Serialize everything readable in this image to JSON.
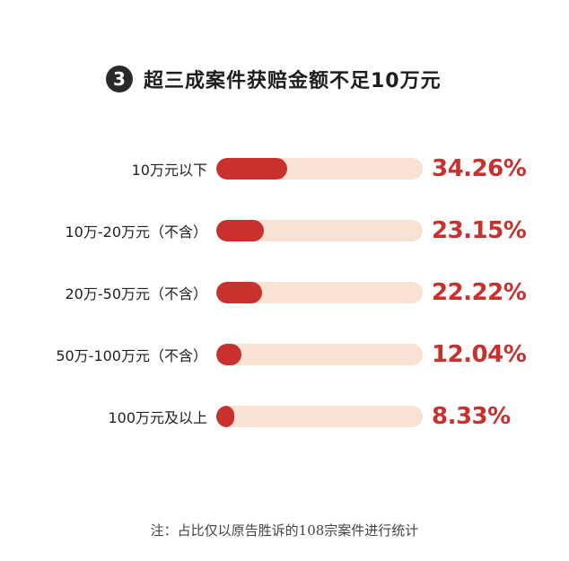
{
  "header": {
    "badge": "3",
    "title": "超三成案件获赔金额不足10万元"
  },
  "chart_data": {
    "type": "bar",
    "orientation": "horizontal",
    "categories": [
      "10万元以下",
      "10万-20万元（不含）",
      "20万-50万元（不含）",
      "50万-100万元（不含）",
      "100万元及以上"
    ],
    "values": [
      34.26,
      23.15,
      22.22,
      12.04,
      8.33
    ],
    "value_labels": [
      "34.26%",
      "23.15%",
      "22.22%",
      "12.04%",
      "8.33%"
    ],
    "xlim": [
      0,
      100
    ],
    "grid": false,
    "legend": "none"
  },
  "footer": {
    "note": "注：占比仅以原告胜诉的108宗案件进行统计"
  },
  "colors": {
    "bar_fill": "#c8312d",
    "bar_track": "#f7e2d3",
    "value_text": "#c8312d",
    "badge_bg": "#2a2a2a"
  }
}
